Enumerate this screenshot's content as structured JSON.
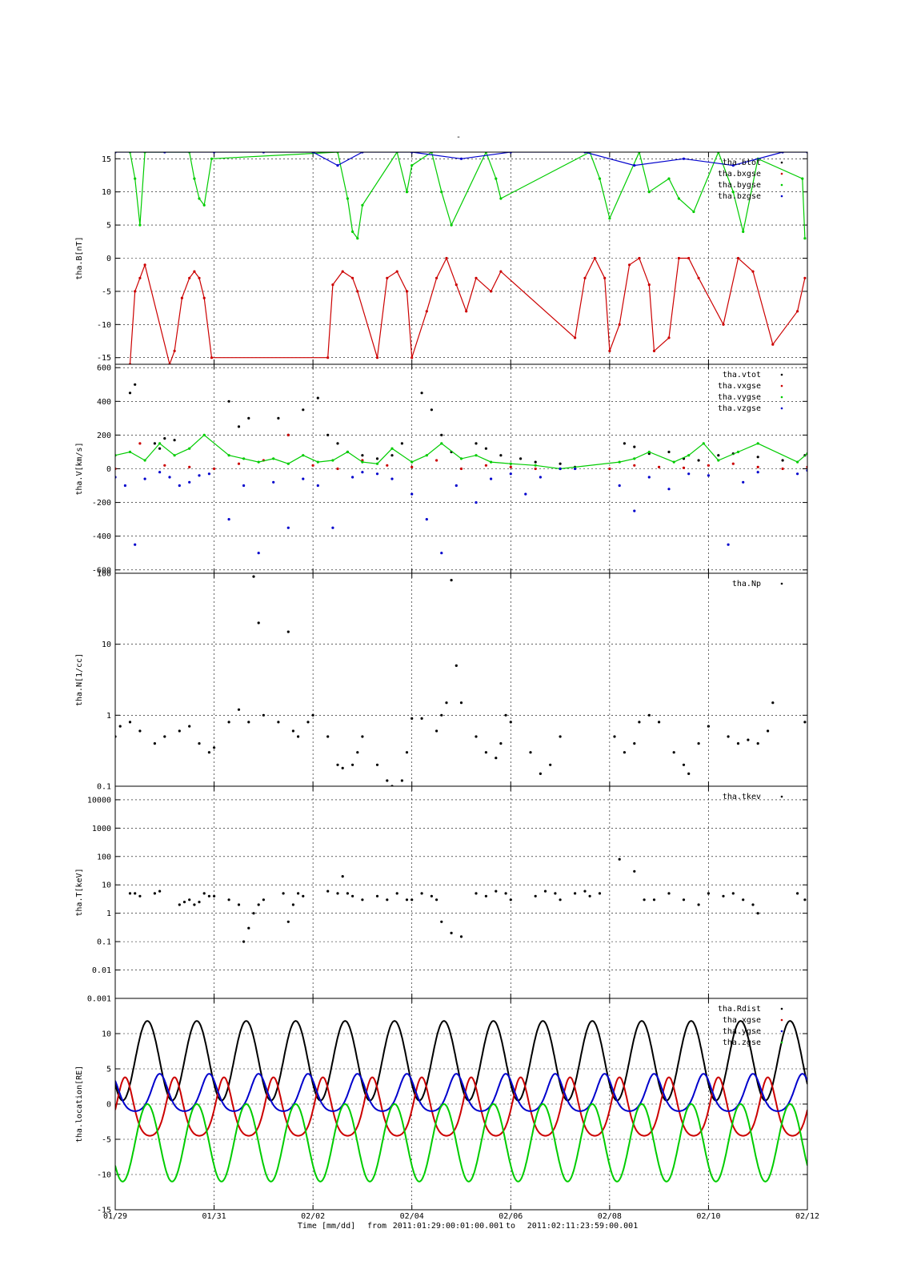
{
  "top_mark": "-",
  "footer": {
    "time_label": "Time [mm/dd]",
    "from_label": "from",
    "from_value": "2011:01:29:00:01:00.001",
    "to_label": "to",
    "to_value": "2011:02:11:23:59:00.001"
  },
  "x_ticks": [
    {
      "day": 0,
      "label": "01/29"
    },
    {
      "day": 2,
      "label": "01/31"
    },
    {
      "day": 4,
      "label": "02/02"
    },
    {
      "day": 6,
      "label": "02/04"
    },
    {
      "day": 8,
      "label": "02/06"
    },
    {
      "day": 10,
      "label": "02/08"
    },
    {
      "day": 12,
      "label": "02/10"
    },
    {
      "day": 14,
      "label": "02/12"
    }
  ],
  "chart_data": [
    {
      "type": "scatter",
      "ylabel": "tha.B[nT]",
      "ylim": [
        -16,
        16
      ],
      "yscale": "linear",
      "yticks": [
        15,
        10,
        5,
        0,
        -5,
        -10,
        -15
      ],
      "xlim_days": [
        0,
        14
      ],
      "grid": true,
      "legend_position": "top-right",
      "series": [
        {
          "name": "tha.btot",
          "color": "#000000",
          "x": [],
          "y": []
        },
        {
          "name": "tha.bxgse",
          "color": "#cc0000",
          "x": [
            0.3,
            0.4,
            0.5,
            0.6,
            1.1,
            1.2,
            1.35,
            1.5,
            1.6,
            1.7,
            1.8,
            1.95,
            4.3,
            4.4,
            4.6,
            4.8,
            4.9,
            5.3,
            5.5,
            5.7,
            5.9,
            6.0,
            6.3,
            6.5,
            6.7,
            6.9,
            7.1,
            7.3,
            7.6,
            7.8,
            9.3,
            9.5,
            9.7,
            9.9,
            10.0,
            10.2,
            10.4,
            10.6,
            10.8,
            10.9,
            11.2,
            11.4,
            11.6,
            11.8,
            12.3,
            12.6,
            12.9,
            13.3,
            13.8,
            13.95
          ],
          "y": [
            -16,
            -5,
            -3,
            -1,
            -16,
            -14,
            -6,
            -3,
            -2,
            -3,
            -6,
            -15,
            -15,
            -4,
            -2,
            -3,
            -5,
            -15,
            -3,
            -2,
            -5,
            -15,
            -8,
            -3,
            0,
            -4,
            -8,
            -3,
            -5,
            -2,
            -12,
            -3,
            0,
            -3,
            -14,
            -10,
            -1,
            0,
            -4,
            -14,
            -12,
            0,
            0,
            -3,
            -10,
            0,
            -2,
            -13,
            -8,
            -3
          ],
          "mode": "line"
        },
        {
          "name": "tha.bygse",
          "color": "#00cc00",
          "x": [
            0.3,
            0.4,
            0.5,
            0.6,
            1.5,
            1.6,
            1.7,
            1.8,
            1.95,
            4.5,
            4.7,
            4.8,
            4.9,
            5.0,
            5.7,
            5.9,
            6.0,
            6.4,
            6.6,
            6.8,
            7.5,
            7.7,
            7.8,
            9.6,
            9.8,
            10.0,
            10.6,
            10.8,
            11.2,
            11.4,
            11.7,
            12.2,
            12.5,
            12.7,
            13.0,
            13.9,
            13.95
          ],
          "y": [
            16,
            12,
            5,
            16,
            16,
            12,
            9,
            8,
            15,
            16,
            9,
            4,
            3,
            8,
            16,
            10,
            14,
            16,
            10,
            5,
            16,
            12,
            9,
            16,
            12,
            6,
            16,
            10,
            12,
            9,
            7,
            16,
            10,
            4,
            15,
            12,
            3
          ],
          "mode": "line"
        },
        {
          "name": "tha.bzgse",
          "color": "#0000cc",
          "x": [
            0.0,
            1.0,
            2.0,
            3.0,
            4.0,
            4.5,
            5.0,
            6.0,
            7.0,
            8.0,
            9.5,
            10.5,
            11.5,
            12.5,
            13.5,
            14.0
          ],
          "y": [
            16,
            16,
            16,
            16,
            16,
            14,
            16,
            16,
            15,
            16,
            16,
            14,
            15,
            14,
            16,
            16
          ],
          "mode": "line"
        }
      ]
    },
    {
      "type": "scatter",
      "ylabel": "tha.V[km/s]",
      "ylim": [
        -620,
        620
      ],
      "yscale": "linear",
      "yticks": [
        600,
        400,
        200,
        0,
        -200,
        -400,
        -600
      ],
      "xlim_days": [
        0,
        14
      ],
      "grid": true,
      "legend_position": "top-right",
      "series": [
        {
          "name": "tha.vtot",
          "color": "#000000",
          "x": [
            0.3,
            0.4,
            0.8,
            0.9,
            1.0,
            1.2,
            2.3,
            2.5,
            2.7,
            3.3,
            3.5,
            3.8,
            4.1,
            4.3,
            4.5,
            4.7,
            5.0,
            5.3,
            5.6,
            5.8,
            6.2,
            6.4,
            6.6,
            6.8,
            7.3,
            7.5,
            7.8,
            8.2,
            8.5,
            9.0,
            9.3,
            10.3,
            10.5,
            10.8,
            11.2,
            11.5,
            11.8,
            12.2,
            12.5,
            13.0,
            13.5,
            13.95
          ],
          "y": [
            450,
            500,
            150,
            120,
            180,
            170,
            400,
            250,
            300,
            300,
            200,
            350,
            420,
            200,
            150,
            100,
            80,
            60,
            80,
            150,
            450,
            350,
            200,
            100,
            150,
            120,
            80,
            60,
            40,
            30,
            10,
            150,
            130,
            90,
            100,
            60,
            50,
            80,
            90,
            70,
            50,
            80
          ],
          "mode": "points"
        },
        {
          "name": "tha.vxgse",
          "color": "#cc0000",
          "x": [
            0.0,
            0.5,
            1.0,
            1.5,
            2.0,
            2.5,
            3.0,
            3.5,
            4.0,
            4.5,
            5.0,
            5.5,
            6.0,
            6.5,
            7.0,
            7.5,
            8.0,
            8.5,
            9.0,
            10.0,
            10.5,
            11.0,
            11.5,
            12.0,
            12.5,
            13.0,
            13.5,
            14.0
          ],
          "y": [
            0,
            150,
            20,
            10,
            0,
            30,
            50,
            200,
            20,
            0,
            50,
            20,
            10,
            50,
            0,
            20,
            10,
            0,
            0,
            0,
            20,
            10,
            5,
            20,
            30,
            10,
            0,
            10
          ],
          "mode": "points"
        },
        {
          "name": "tha.vygse",
          "color": "#00cc00",
          "x": [
            0.0,
            0.3,
            0.6,
            0.9,
            1.2,
            1.5,
            1.8,
            2.3,
            2.6,
            2.9,
            3.2,
            3.5,
            3.8,
            4.1,
            4.4,
            4.7,
            5.0,
            5.3,
            5.6,
            6.0,
            6.3,
            6.6,
            7.0,
            7.3,
            7.6,
            8.0,
            8.5,
            9.0,
            10.2,
            10.5,
            10.8,
            11.3,
            11.6,
            11.9,
            12.2,
            12.6,
            13.0,
            13.8,
            14.0
          ],
          "y": [
            80,
            100,
            50,
            150,
            80,
            120,
            200,
            80,
            60,
            40,
            60,
            30,
            80,
            40,
            50,
            100,
            40,
            30,
            120,
            40,
            80,
            150,
            60,
            80,
            40,
            30,
            20,
            0,
            40,
            60,
            100,
            40,
            80,
            150,
            50,
            100,
            150,
            40,
            90
          ],
          "mode": "line"
        },
        {
          "name": "tha.vzgse",
          "color": "#0000cc",
          "x": [
            0.0,
            0.2,
            0.4,
            0.6,
            0.9,
            1.1,
            1.3,
            1.5,
            1.7,
            1.9,
            2.3,
            2.6,
            2.9,
            3.2,
            3.5,
            3.8,
            4.1,
            4.4,
            4.8,
            5.0,
            5.3,
            5.6,
            6.0,
            6.3,
            6.6,
            6.9,
            7.3,
            7.6,
            8.0,
            8.3,
            8.6,
            9.0,
            9.3,
            10.2,
            10.5,
            10.8,
            11.2,
            11.6,
            12.0,
            12.4,
            12.7,
            13.0,
            13.8,
            14.0
          ],
          "y": [
            -50,
            -100,
            -450,
            -60,
            -20,
            -50,
            -100,
            -80,
            -40,
            -30,
            -300,
            -100,
            -500,
            -80,
            -350,
            -60,
            -100,
            -350,
            -50,
            -20,
            -30,
            -60,
            -150,
            -300,
            -500,
            -100,
            -200,
            -60,
            -30,
            -150,
            -50,
            0,
            0,
            -100,
            -250,
            -50,
            -120,
            -30,
            -40,
            -450,
            -80,
            -20,
            -30,
            -10
          ],
          "mode": "points"
        }
      ]
    },
    {
      "type": "scatter",
      "ylabel": "tha.N[1/cc]",
      "ylim": [
        0.1,
        100
      ],
      "yscale": "log",
      "yticks": [
        100,
        10,
        1,
        0.1
      ],
      "xlim_days": [
        0,
        14
      ],
      "grid": true,
      "legend_position": "top-right",
      "series": [
        {
          "name": "tha.Np",
          "color": "#000000",
          "x": [
            0.0,
            0.1,
            0.3,
            0.5,
            0.8,
            1.0,
            1.3,
            1.5,
            1.7,
            1.9,
            2.0,
            2.3,
            2.5,
            2.7,
            2.8,
            2.9,
            3.0,
            3.3,
            3.5,
            3.6,
            3.7,
            3.9,
            4.0,
            4.3,
            4.5,
            4.6,
            4.8,
            4.9,
            5.0,
            5.3,
            5.5,
            5.6,
            5.8,
            5.9,
            6.0,
            6.2,
            6.5,
            6.6,
            6.7,
            6.8,
            6.9,
            7.0,
            7.3,
            7.5,
            7.7,
            7.8,
            7.9,
            8.0,
            8.4,
            8.6,
            8.8,
            9.0,
            10.1,
            10.3,
            10.5,
            10.6,
            10.8,
            11.0,
            11.3,
            11.5,
            11.6,
            11.8,
            12.0,
            12.4,
            12.6,
            12.8,
            13.0,
            13.2,
            13.3,
            13.95
          ],
          "y": [
            0.5,
            0.7,
            0.8,
            0.6,
            0.4,
            0.5,
            0.6,
            0.7,
            0.4,
            0.3,
            0.35,
            0.8,
            1.2,
            0.8,
            90,
            20,
            1.0,
            0.8,
            15,
            0.6,
            0.5,
            0.8,
            1.0,
            0.5,
            0.2,
            0.18,
            0.2,
            0.3,
            0.5,
            0.2,
            0.12,
            0.1,
            0.12,
            0.3,
            0.9,
            0.9,
            0.6,
            1.0,
            1.5,
            80,
            5,
            1.5,
            0.5,
            0.3,
            0.25,
            0.4,
            1.0,
            0.8,
            0.3,
            0.15,
            0.2,
            0.5,
            0.5,
            0.3,
            0.4,
            0.8,
            1.0,
            0.8,
            0.3,
            0.2,
            0.15,
            0.4,
            0.7,
            0.5,
            0.4,
            0.45,
            0.4,
            0.6,
            1.5,
            0.8
          ],
          "mode": "points"
        }
      ]
    },
    {
      "type": "scatter",
      "ylabel": "tha.T[keV]",
      "ylim": [
        0.001,
        30000
      ],
      "yscale": "log",
      "yticks": [
        10000,
        1000,
        100,
        10,
        1,
        0.1,
        0.01,
        0.001
      ],
      "ytick_labels": [
        "10000",
        "1000",
        "100",
        "10",
        "1",
        "0.1",
        "0.01",
        "0.001"
      ],
      "xlim_days": [
        0,
        14
      ],
      "grid": true,
      "legend_position": "top-right",
      "series": [
        {
          "name": "tha.tkev",
          "color": "#000000",
          "x": [
            0.3,
            0.4,
            0.5,
            0.8,
            0.9,
            1.3,
            1.4,
            1.5,
            1.6,
            1.7,
            1.8,
            1.9,
            2.0,
            2.3,
            2.5,
            2.6,
            2.7,
            2.8,
            2.9,
            3.0,
            3.4,
            3.5,
            3.6,
            3.7,
            3.8,
            4.3,
            4.5,
            4.6,
            4.7,
            4.8,
            5.0,
            5.3,
            5.5,
            5.7,
            5.9,
            6.0,
            6.2,
            6.4,
            6.5,
            6.6,
            6.8,
            7.0,
            7.3,
            7.5,
            7.7,
            7.9,
            8.0,
            8.5,
            8.7,
            8.9,
            9.0,
            9.3,
            9.5,
            9.6,
            9.8,
            10.2,
            10.5,
            10.7,
            10.9,
            11.2,
            11.5,
            11.8,
            12.0,
            12.3,
            12.5,
            12.7,
            12.9,
            13.0,
            13.8,
            13.95
          ],
          "y": [
            5,
            5,
            4,
            5,
            6,
            2,
            2.5,
            3,
            2,
            2.5,
            5,
            4,
            4,
            3,
            2,
            0.1,
            0.3,
            1,
            2,
            3,
            5,
            0.5,
            2,
            5,
            4,
            6,
            5,
            20,
            5,
            4,
            3,
            4,
            3,
            5,
            3,
            3,
            5,
            4,
            3,
            0.5,
            0.2,
            0.15,
            5,
            4,
            6,
            5,
            3,
            4,
            6,
            5,
            3,
            5,
            6,
            4,
            5,
            80,
            30,
            3,
            3,
            5,
            3,
            2,
            5,
            4,
            5,
            3,
            2,
            1,
            5,
            3
          ],
          "mode": "points"
        }
      ]
    },
    {
      "type": "line",
      "ylabel": "tha.location[RE]",
      "ylim": [
        -15,
        15
      ],
      "yscale": "linear",
      "yticks": [
        10,
        5,
        0,
        -5,
        -10,
        -15
      ],
      "xlim_days": [
        0,
        14
      ],
      "grid": true,
      "legend_position": "top-right",
      "orbit_period_days": 1.0,
      "series": [
        {
          "name": "tha.Rdist",
          "color": "#000000",
          "peak": 11.8,
          "trough": 0.5,
          "phase_days": 0.65,
          "shape": "orbit"
        },
        {
          "name": "tha.xgse",
          "color": "#cc0000",
          "peak": 3.8,
          "trough": -4.5,
          "phase_days": 0.2,
          "shape": "skew"
        },
        {
          "name": "tha.ygse",
          "color": "#0000cc",
          "peak": 4.3,
          "trough": -1.0,
          "phase_days": 0.9,
          "shape": "skew"
        },
        {
          "name": "tha.zgse",
          "color": "#00cc00",
          "peak": 0.0,
          "trough": -11.0,
          "phase_days": 0.65,
          "shape": "orbit-neg"
        }
      ]
    }
  ]
}
